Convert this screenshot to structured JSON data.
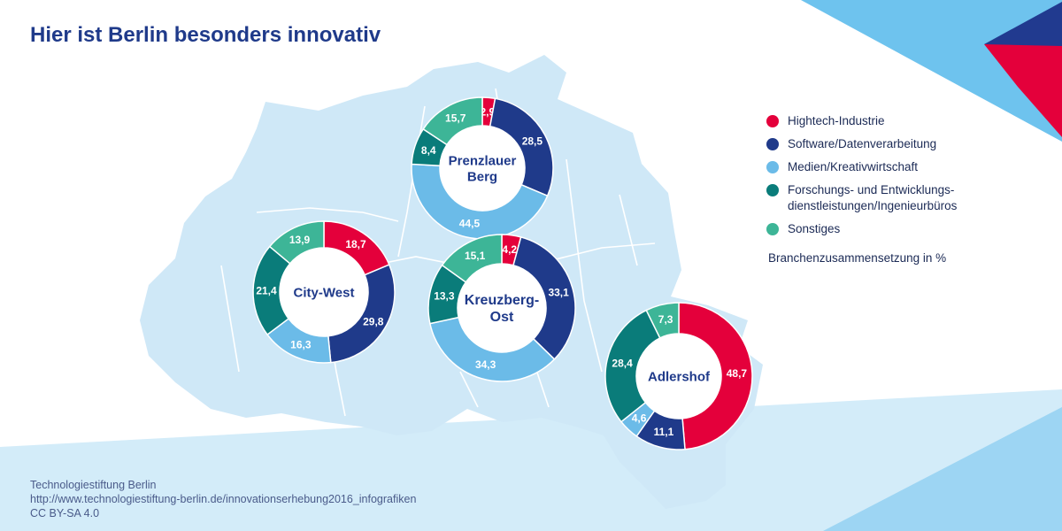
{
  "title": "Hier ist Berlin besonders innovativ",
  "colors": {
    "hightech": "#e4003b",
    "software": "#1f3a8a",
    "medien": "#6bbbe8",
    "forschung": "#0a7c7a",
    "sonstiges": "#3db597",
    "map": "#cfe8f7",
    "map_lines": "#ffffff",
    "title": "#1f3a8a"
  },
  "legend": {
    "items": [
      {
        "label": "Hightech-Industrie",
        "color": "#e4003b"
      },
      {
        "label": "Software/Datenverarbeitung",
        "color": "#1f3a8a"
      },
      {
        "label": "Medien/Kreativwirtschaft",
        "color": "#6bbbe8"
      },
      {
        "label": "Forschungs- und Entwicklungs-\ndienstleistungen/Ingenieurbüros",
        "color": "#0a7c7a"
      },
      {
        "label": "Sonstiges",
        "color": "#3db597"
      }
    ],
    "note": "Branchenzusammensetzung in %"
  },
  "chart_data": [
    {
      "type": "pie",
      "title": "Prenzlauer\nBerg",
      "categories": [
        "Hightech-Industrie",
        "Software/Datenverarbeitung",
        "Medien/Kreativwirtschaft",
        "Forschungs- und Entwicklungsdienstleistungen/Ingenieurbüros",
        "Sonstiges"
      ],
      "values": [
        2.9,
        28.5,
        44.5,
        8.4,
        15.7
      ],
      "labels": [
        "2,9",
        "28,5",
        "44,5",
        "8,4",
        "15,7"
      ]
    },
    {
      "type": "pie",
      "title": "City-West",
      "categories": [
        "Hightech-Industrie",
        "Software/Datenverarbeitung",
        "Medien/Kreativwirtschaft",
        "Forschungs- und Entwicklungsdienstleistungen/Ingenieurbüros",
        "Sonstiges"
      ],
      "values": [
        18.7,
        29.8,
        16.3,
        21.4,
        13.9
      ],
      "labels": [
        "18,7",
        "29,8",
        "16,3",
        "21,4",
        "13,9"
      ]
    },
    {
      "type": "pie",
      "title": "Kreuzberg-\nOst",
      "categories": [
        "Hightech-Industrie",
        "Software/Datenverarbeitung",
        "Medien/Kreativwirtschaft",
        "Forschungs- und Entwicklungsdienstleistungen/Ingenieurbüros",
        "Sonstiges"
      ],
      "values": [
        4.2,
        33.1,
        34.3,
        13.3,
        15.1
      ],
      "labels": [
        "4,2",
        "33,1",
        "34,3",
        "13,3",
        "15,1"
      ]
    },
    {
      "type": "pie",
      "title": "Adlershof",
      "categories": [
        "Hightech-Industrie",
        "Software/Datenverarbeitung",
        "Medien/Kreativwirtschaft",
        "Forschungs- und Entwicklungsdienstleistungen/Ingenieurbüros",
        "Sonstiges"
      ],
      "values": [
        48.7,
        11.1,
        4.6,
        28.4,
        7.3
      ],
      "labels": [
        "48,7",
        "11,1",
        "4,6",
        "28,4",
        "7,3"
      ]
    }
  ],
  "footer": {
    "line1": "Technologiestiftung Berlin",
    "line2": "http://www.technologiestiftung-berlin.de/innovationserhebung2016_infografiken",
    "line3": "CC BY-SA 4.0"
  }
}
